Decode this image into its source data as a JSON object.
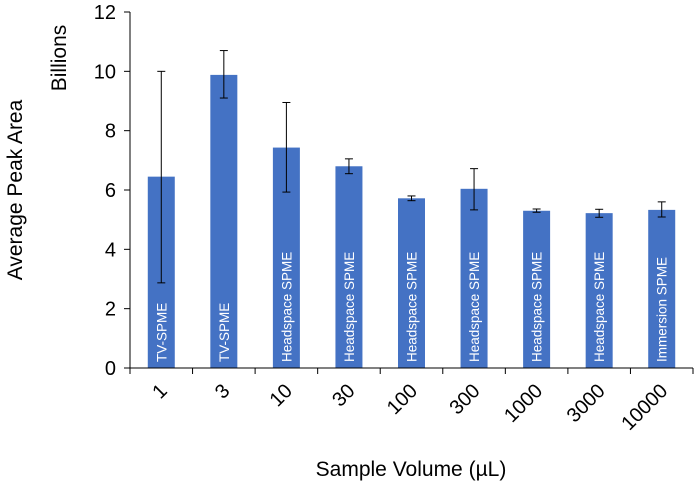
{
  "chart_data": {
    "type": "bar",
    "title": "",
    "ylabel": "Average Peak Area",
    "yunit_label": "Billions",
    "xlabel": "Sample Volume (µL)",
    "ylim": [
      0,
      12
    ],
    "yticks": [
      "0",
      "2",
      "4",
      "6",
      "8",
      "10",
      "12"
    ],
    "grid": false,
    "categories": [
      "1",
      "3",
      "10",
      "30",
      "100",
      "300",
      "1000",
      "3000",
      "10000"
    ],
    "values": [
      6.45,
      9.88,
      7.43,
      6.8,
      5.72,
      6.04,
      5.3,
      5.22,
      5.33
    ],
    "error_low": [
      2.87,
      9.1,
      5.93,
      6.55,
      5.64,
      5.33,
      5.25,
      5.08,
      5.09
    ],
    "error_high": [
      10.0,
      10.7,
      8.95,
      7.05,
      5.8,
      6.72,
      5.36,
      5.35,
      5.6
    ],
    "bar_labels": [
      "TV-SPME",
      "TV-SPME",
      "Headspace SPME",
      "Headspace SPME",
      "Headspace SPME",
      "Headspace SPME",
      "Headspace SPME",
      "Headspace SPME",
      "Immersion SPME"
    ],
    "colors": {
      "bar": "#4472c4",
      "axis": "#000000",
      "error_bar": "#000000",
      "bar_text": "#ffffff"
    }
  }
}
